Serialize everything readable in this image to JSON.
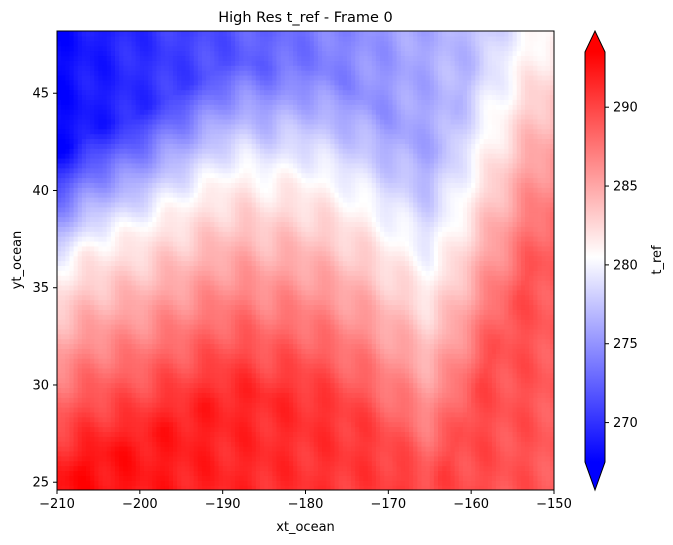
{
  "chart_data": {
    "type": "heatmap",
    "title": "High Res t_ref - Frame 0",
    "xlabel": "xt_ocean",
    "ylabel": "yt_ocean",
    "xlim": [
      -210,
      -150
    ],
    "ylim": [
      24.6,
      48.2
    ],
    "x_ticks": [
      -210,
      -200,
      -190,
      -180,
      -170,
      -160,
      -150
    ],
    "x_tick_labels": [
      "−210",
      "−200",
      "−190",
      "−180",
      "−170",
      "−160",
      "−150"
    ],
    "y_ticks": [
      25,
      30,
      35,
      40,
      45
    ],
    "y_tick_labels": [
      "25",
      "30",
      "35",
      "40",
      "45"
    ],
    "colormap": "bwr",
    "colormap_colors": [
      "#0000ff",
      "#ffffff",
      "#ff0000"
    ],
    "colorbar": {
      "label": "t_ref",
      "range": [
        267.5,
        293.5
      ],
      "ticks": [
        270,
        275,
        280,
        285,
        290
      ],
      "tick_labels": [
        "270",
        "275",
        "280",
        "285",
        "290"
      ],
      "extend": "both"
    },
    "front_line": {
      "description_values": "approximate t_ref=281 isotherm (x, y)",
      "x": [
        -210,
        -206,
        -203,
        -201,
        -199,
        -196,
        -193,
        -190,
        -187,
        -184,
        -181,
        -178,
        -175,
        -172,
        -169,
        -166,
        -165,
        -163,
        -161,
        -158,
        -155,
        -153,
        -151,
        -150
      ],
      "y": [
        35.8,
        37.0,
        37.6,
        37.7,
        38.3,
        39.0,
        39.7,
        40.5,
        40.7,
        40.3,
        40.6,
        40.1,
        39.4,
        38.4,
        37.1,
        35.8,
        35.5,
        36.8,
        39.0,
        42.0,
        45.0,
        46.8,
        47.8,
        48.2
      ]
    },
    "field_values": {
      "north_west_min": 268,
      "north_east": 279,
      "south_west_max": 293,
      "south_east": 289
    }
  }
}
